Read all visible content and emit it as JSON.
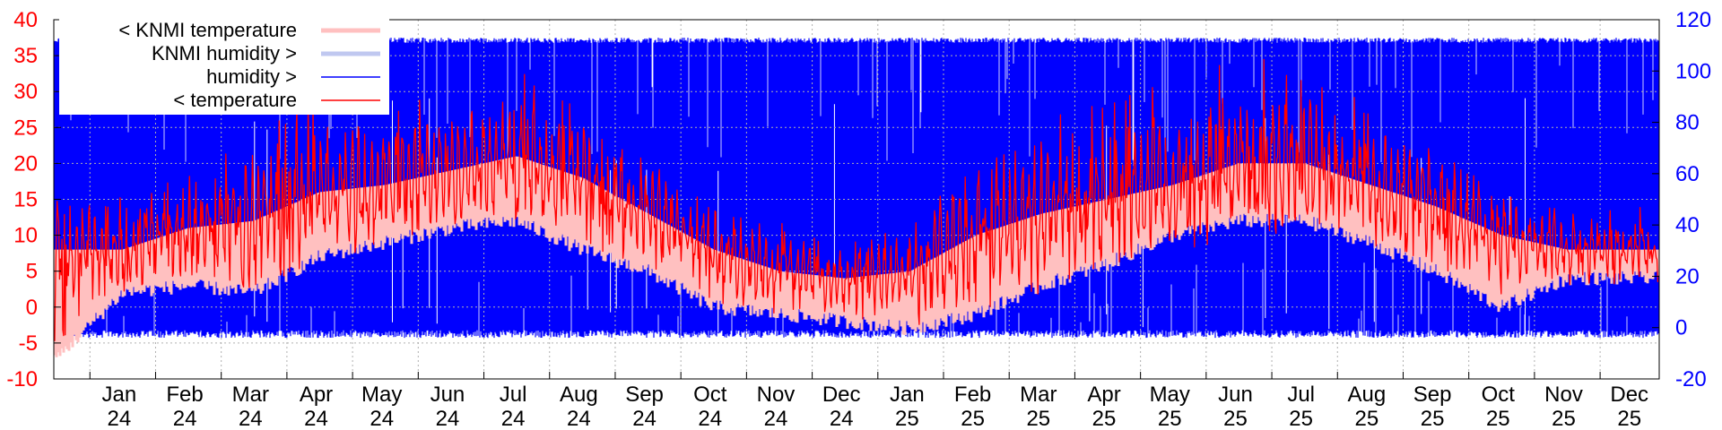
{
  "chart_data": {
    "type": "line",
    "title": "",
    "xlabel": "",
    "ylabel": "",
    "x_ticks": [
      {
        "month": "Jan",
        "year": "24"
      },
      {
        "month": "Feb",
        "year": "24"
      },
      {
        "month": "Mar",
        "year": "24"
      },
      {
        "month": "Apr",
        "year": "24"
      },
      {
        "month": "May",
        "year": "24"
      },
      {
        "month": "Jun",
        "year": "24"
      },
      {
        "month": "Jul",
        "year": "24"
      },
      {
        "month": "Aug",
        "year": "24"
      },
      {
        "month": "Sep",
        "year": "24"
      },
      {
        "month": "Oct",
        "year": "24"
      },
      {
        "month": "Nov",
        "year": "24"
      },
      {
        "month": "Dec",
        "year": "24"
      },
      {
        "month": "Jan",
        "year": "25"
      },
      {
        "month": "Feb",
        "year": "25"
      },
      {
        "month": "Mar",
        "year": "25"
      },
      {
        "month": "Apr",
        "year": "25"
      },
      {
        "month": "May",
        "year": "25"
      },
      {
        "month": "Jun",
        "year": "25"
      },
      {
        "month": "Jul",
        "year": "25"
      },
      {
        "month": "Aug",
        "year": "25"
      },
      {
        "month": "Sep",
        "year": "25"
      },
      {
        "month": "Oct",
        "year": "25"
      },
      {
        "month": "Nov",
        "year": "25"
      },
      {
        "month": "Dec",
        "year": "25"
      }
    ],
    "y_left": {
      "min": -10,
      "max": 40,
      "ticks": [
        "-10",
        "-5",
        "0",
        "5",
        "10",
        "15",
        "20",
        "25",
        "30",
        "35",
        "40"
      ],
      "color": "#ff0000"
    },
    "y_right": {
      "min": -20,
      "max": 120,
      "ticks": [
        "-20",
        "0",
        "20",
        "40",
        "60",
        "80",
        "100",
        "120"
      ],
      "color": "#0000ff"
    },
    "grid": true,
    "legend_position": "top-left",
    "legend": [
      {
        "label": "< KNMI temperature",
        "color": "#ffc0c0",
        "axis": "left"
      },
      {
        "label": "KNMI humidity >",
        "color": "#c0c8f0",
        "axis": "right"
      },
      {
        "label": "humidity >",
        "color": "#0000ff",
        "axis": "right"
      },
      {
        "label": "< temperature",
        "color": "#ff0000",
        "axis": "left"
      }
    ],
    "series": [
      {
        "name": "< temperature",
        "axis": "left",
        "color": "#ff0000",
        "monthly_centers": [
          8,
          8,
          11,
          12,
          16,
          17,
          19,
          21,
          18,
          13,
          8,
          5,
          4,
          5,
          10,
          13,
          15,
          17,
          20,
          20,
          17,
          14,
          10,
          8
        ],
        "monthly_max": [
          13,
          17,
          19,
          24,
          30,
          28,
          31,
          34,
          27,
          22,
          14,
          12,
          9,
          12,
          25,
          28,
          28,
          34,
          36,
          33,
          28,
          24,
          16,
          15
        ],
        "monthly_min": [
          -5,
          3,
          3,
          2,
          7,
          9,
          11,
          12,
          8,
          5,
          0,
          -1,
          -2,
          -3,
          -1,
          3,
          6,
          10,
          12,
          12,
          9,
          5,
          0,
          4
        ]
      },
      {
        "name": "< KNMI temperature",
        "axis": "left",
        "color": "#ffc0c0",
        "monthly_min": [
          -8,
          1,
          2,
          1,
          6,
          8,
          10,
          11,
          7,
          4,
          -1,
          -2,
          -3,
          -4,
          -2,
          2,
          5,
          9,
          11,
          11,
          8,
          4,
          -1,
          3
        ]
      },
      {
        "name": "humidity >",
        "axis": "right",
        "color": "#0000ff",
        "range_min": -4,
        "range_max": 113
      },
      {
        "name": "KNMI humidity >",
        "axis": "right",
        "color": "#c0c8f0",
        "range_min": 0,
        "range_max": 100
      }
    ]
  }
}
